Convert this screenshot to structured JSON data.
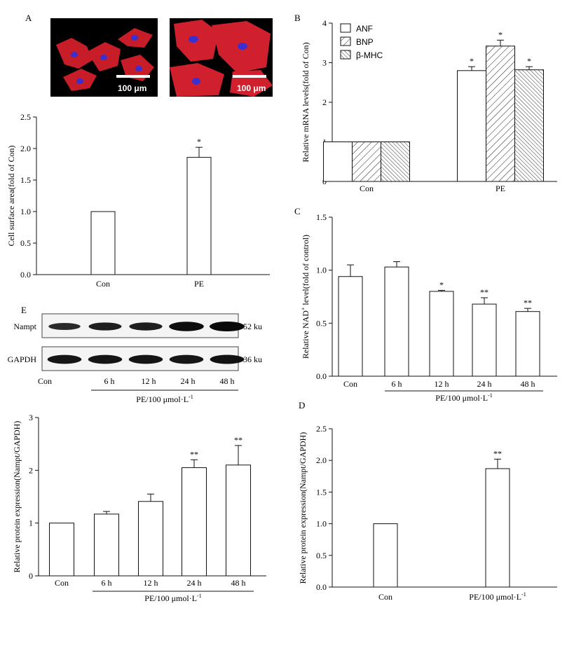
{
  "panel_labels": {
    "A": "A",
    "B": "B",
    "C": "C",
    "D": "D",
    "E": "E"
  },
  "micrographs": {
    "scale_text": "100 μm",
    "stain_color": "#e0202a",
    "nucleus_color": "#3a2ec8"
  },
  "blot": {
    "rows": [
      {
        "label": "Nampt",
        "size": "52 ku",
        "intensities": [
          0.55,
          0.7,
          0.72,
          0.95,
          1.0
        ]
      },
      {
        "label": "GAPDH",
        "size": "36 ku",
        "intensities": [
          0.85,
          0.85,
          0.85,
          0.85,
          0.88
        ]
      }
    ],
    "lanes": [
      "Con",
      "6 h",
      "12 h",
      "24 h",
      "48 h"
    ],
    "treatment": "PE/100 μmol·L-1"
  },
  "chart_data": [
    {
      "id": "A",
      "type": "bar",
      "categories": [
        "Con",
        "PE"
      ],
      "values": [
        1.0,
        1.86
      ],
      "errors": [
        0,
        0.16
      ],
      "sig": [
        "",
        "*"
      ],
      "ylabel": "Cell surface area(fold of Con)",
      "ylim": [
        0,
        2.5
      ],
      "yticks": [
        "0.0",
        "0.5",
        "1.0",
        "1.5",
        "2.0",
        "2.5"
      ]
    },
    {
      "id": "B",
      "type": "bar",
      "categories": [
        "Con",
        "PE"
      ],
      "series": [
        {
          "name": "ANF",
          "values": [
            1.0,
            2.8
          ],
          "errors": [
            0,
            0.1
          ],
          "sig": [
            "",
            "*"
          ]
        },
        {
          "name": "BNP",
          "values": [
            1.0,
            3.42
          ],
          "errors": [
            0,
            0.15
          ],
          "sig": [
            "",
            "*"
          ]
        },
        {
          "name": "β-MHC",
          "values": [
            1.0,
            2.82
          ],
          "errors": [
            0,
            0.08
          ],
          "sig": [
            "",
            "*"
          ]
        }
      ],
      "ylabel": "Relative mRNA levels(fold of Con)",
      "ylim": [
        0,
        4
      ],
      "yticks": [
        "0",
        "1",
        "2",
        "3",
        "4"
      ],
      "legend": "top-left"
    },
    {
      "id": "C",
      "type": "bar",
      "categories": [
        "Con",
        "6 h",
        "12 h",
        "24 h",
        "48 h"
      ],
      "values": [
        0.94,
        1.03,
        0.8,
        0.68,
        0.61
      ],
      "errors": [
        0.11,
        0.05,
        0.01,
        0.06,
        0.03
      ],
      "sig": [
        "",
        "",
        "*",
        "**",
        "**"
      ],
      "ylabel": "Relative NAD+ level(fold of control)",
      "xgroup": "PE/100 μmol·L-1",
      "ylim": [
        0,
        1.5
      ],
      "yticks": [
        "0.0",
        "0.5",
        "1.0",
        "1.5"
      ]
    },
    {
      "id": "E",
      "type": "bar",
      "categories": [
        "Con",
        "6 h",
        "12 h",
        "24 h",
        "48 h"
      ],
      "values": [
        1.0,
        1.17,
        1.41,
        2.05,
        2.1
      ],
      "errors": [
        0,
        0.05,
        0.14,
        0.15,
        0.37
      ],
      "sig": [
        "",
        "",
        "",
        "**",
        "**"
      ],
      "ylabel": "Relative protein expression(Nampt/GAPDH)",
      "xgroup": "PE/100 μmol·L-1",
      "ylim": [
        0,
        3
      ],
      "yticks": [
        "0",
        "1",
        "2",
        "3"
      ]
    },
    {
      "id": "D",
      "type": "bar",
      "categories": [
        "Con",
        "PE/100 μmol·L-1"
      ],
      "values": [
        1.0,
        1.87
      ],
      "errors": [
        0,
        0.15
      ],
      "sig": [
        "",
        "**"
      ],
      "ylabel": "Relative protein expression(Nampt/GAPDH)",
      "ylim": [
        0,
        2.5
      ],
      "yticks": [
        "0.0",
        "0.5",
        "1.0",
        "1.5",
        "2.0",
        "2.5"
      ]
    }
  ]
}
